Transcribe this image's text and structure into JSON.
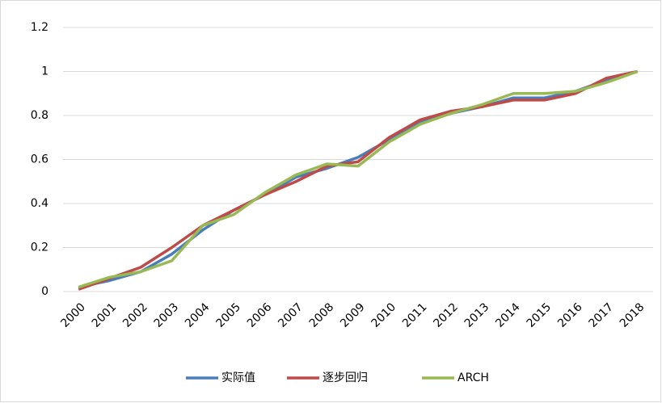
{
  "chart_data": {
    "type": "line",
    "categories": [
      "2000",
      "2001",
      "2002",
      "2003",
      "2004",
      "2005",
      "2006",
      "2007",
      "2008",
      "2009",
      "2010",
      "2011",
      "2012",
      "2013",
      "2014",
      "2015",
      "2016",
      "2017",
      "2018"
    ],
    "series": [
      {
        "name": "实际值",
        "color": "#4a7ebb",
        "values": [
          0.02,
          0.05,
          0.09,
          0.17,
          0.28,
          0.37,
          0.44,
          0.52,
          0.56,
          0.61,
          0.69,
          0.77,
          0.81,
          0.84,
          0.88,
          0.88,
          0.91,
          0.96,
          1.0
        ]
      },
      {
        "name": "逐步回归",
        "color": "#be4b48",
        "values": [
          0.01,
          0.06,
          0.11,
          0.2,
          0.3,
          0.37,
          0.44,
          0.5,
          0.57,
          0.59,
          0.7,
          0.78,
          0.82,
          0.84,
          0.87,
          0.87,
          0.9,
          0.97,
          1.0
        ]
      },
      {
        "name": "ARCH",
        "color": "#98b954",
        "values": [
          0.02,
          0.065,
          0.09,
          0.14,
          0.3,
          0.35,
          0.45,
          0.53,
          0.58,
          0.57,
          0.68,
          0.76,
          0.81,
          0.85,
          0.9,
          0.9,
          0.91,
          0.95,
          1.0
        ]
      }
    ],
    "ylim": [
      0,
      1.2
    ],
    "yticks": [
      0,
      0.2,
      0.4,
      0.6,
      0.8,
      1,
      1.2
    ],
    "grid": true,
    "legend": "bottom"
  }
}
